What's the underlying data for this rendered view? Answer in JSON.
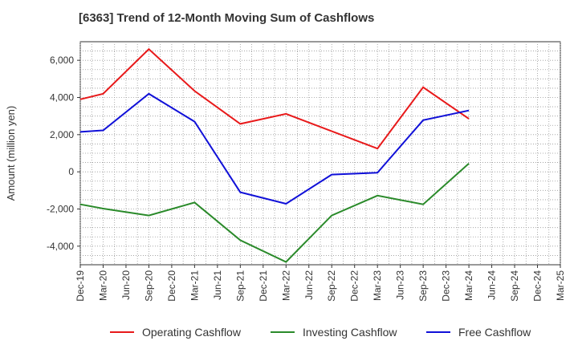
{
  "chart_data": {
    "type": "line",
    "title": "[6363]  Trend of 12-Month Moving Sum of Cashflows",
    "ylabel": "Amount (million yen)",
    "xlabel": "",
    "categories": [
      "Dec-19",
      "Mar-20",
      "Jun-20",
      "Sep-20",
      "Dec-20",
      "Mar-21",
      "Jun-21",
      "Sep-21",
      "Dec-21",
      "Mar-22",
      "Jun-22",
      "Sep-22",
      "Dec-22",
      "Mar-23",
      "Jun-23",
      "Sep-23",
      "Dec-23",
      "Mar-24",
      "Jun-24",
      "Sep-24",
      "Dec-24",
      "Mar-25"
    ],
    "ylim": [
      -5000,
      7000
    ],
    "yticks": [
      -4000,
      -2000,
      0,
      2000,
      4000,
      6000
    ],
    "ytick_labels": [
      "-4,000",
      "-2,000",
      "0",
      "2,000",
      "4,000",
      "6,000"
    ],
    "grid": true,
    "legend_position": "bottom",
    "series": [
      {
        "name": "Operating Cashflow",
        "color": "#e8191a",
        "values": [
          3900,
          4200,
          null,
          6600,
          null,
          4350,
          null,
          2580,
          null,
          3120,
          null,
          null,
          null,
          1250,
          null,
          4550,
          null,
          2850,
          null,
          null,
          null,
          null
        ]
      },
      {
        "name": "Investing Cashflow",
        "color": "#2a8a2a",
        "values": [
          -1750,
          -1980,
          null,
          -2350,
          null,
          -1650,
          null,
          -3680,
          null,
          -4850,
          null,
          -2350,
          null,
          -1280,
          null,
          -1750,
          null,
          450,
          null,
          null,
          null,
          null
        ]
      },
      {
        "name": "Free Cashflow",
        "color": "#1010d8",
        "values": [
          2150,
          2230,
          null,
          4200,
          null,
          2700,
          null,
          -1100,
          null,
          -1720,
          null,
          -150,
          null,
          -50,
          null,
          2780,
          null,
          3300,
          null,
          null,
          null,
          null
        ]
      }
    ]
  }
}
